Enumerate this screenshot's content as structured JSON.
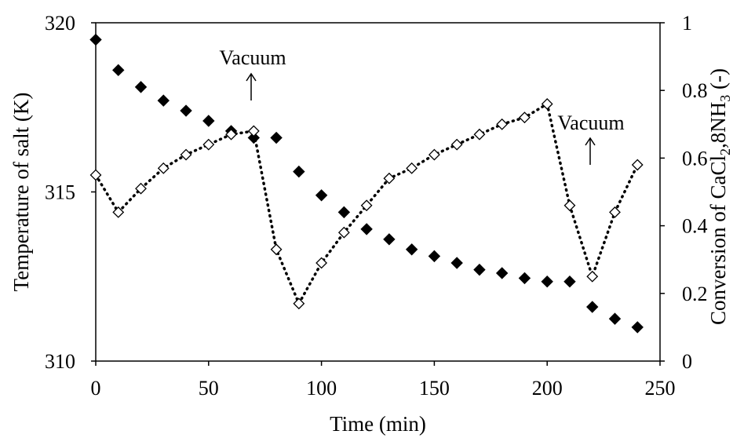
{
  "chart_data": {
    "type": "scatter",
    "title": "",
    "xlabel": "Time (min)",
    "ylabel_left": "Temperature of salt (K)",
    "ylabel_right_parts": [
      "Conversion of CaCl",
      "2",
      ",8NH",
      "3",
      " (-)"
    ],
    "xlim": [
      0,
      250
    ],
    "ylim_left": [
      310,
      320
    ],
    "ylim_right": [
      0,
      1
    ],
    "x_ticks": [
      "0",
      "50",
      "100",
      "150",
      "200",
      "250"
    ],
    "y_left_ticks": [
      "310",
      "315",
      "320"
    ],
    "y_right_ticks": [
      "0",
      "0.2",
      "0.4",
      "0.6",
      "0.8",
      "1"
    ],
    "grid": false,
    "legend": "none",
    "series": [
      {
        "axis": "left",
        "marker": "filled-diamond",
        "line": "none",
        "x": [
          0,
          10,
          20,
          30,
          40,
          50,
          60,
          70,
          80,
          90,
          100,
          110,
          120,
          130,
          140,
          150,
          160,
          170,
          180,
          190,
          200,
          210,
          220,
          230,
          240
        ],
        "values": [
          319.5,
          318.6,
          318.1,
          317.7,
          317.4,
          317.1,
          316.8,
          316.6,
          316.6,
          315.6,
          314.9,
          314.4,
          313.9,
          313.6,
          313.3,
          313.1,
          312.9,
          312.7,
          312.6,
          312.45,
          312.35,
          312.35,
          311.6,
          311.25,
          311.0
        ]
      },
      {
        "axis": "right",
        "marker": "open-diamond",
        "line": "dotted",
        "x": [
          0,
          10,
          20,
          30,
          40,
          50,
          60,
          70,
          80,
          90,
          100,
          110,
          120,
          130,
          140,
          150,
          160,
          170,
          180,
          190,
          200,
          210,
          220,
          230,
          240
        ],
        "values": [
          0.55,
          0.44,
          0.51,
          0.57,
          0.61,
          0.64,
          0.67,
          0.68,
          0.33,
          0.17,
          0.29,
          0.38,
          0.46,
          0.54,
          0.57,
          0.61,
          0.64,
          0.67,
          0.7,
          0.72,
          0.76,
          0.46,
          0.25,
          0.44,
          0.58
        ]
      }
    ],
    "annotations": [
      {
        "text": "Vacuum",
        "x": 70,
        "arrow": "up"
      },
      {
        "text": "Vacuum",
        "x": 220,
        "arrow": "up"
      }
    ],
    "colors": {
      "series_left": "#000000",
      "series_right": "#000000",
      "axis": "#000000"
    }
  }
}
